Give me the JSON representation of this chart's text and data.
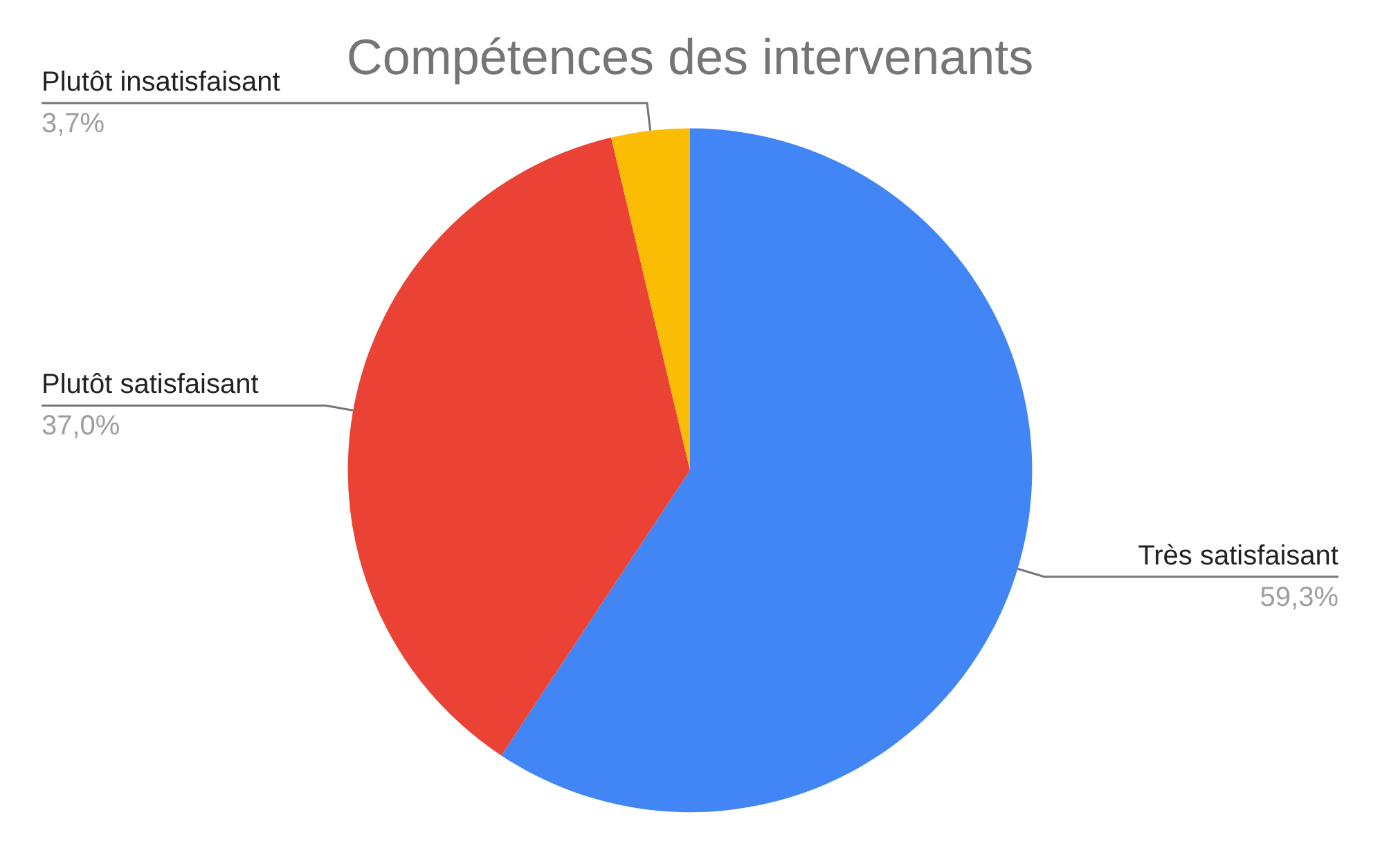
{
  "chart_data": {
    "type": "pie",
    "title": "Compétences des intervenants",
    "categories": [
      "Très satisfaisant",
      "Plutôt satisfaisant",
      "Plutôt insatisfaisant"
    ],
    "values": [
      59.3,
      37.0,
      3.7
    ],
    "colors": [
      "#4285f4",
      "#ea4335",
      "#fbbc04"
    ],
    "value_labels": [
      "59,3%",
      "37,0%",
      "3,7%"
    ],
    "legend": false
  }
}
